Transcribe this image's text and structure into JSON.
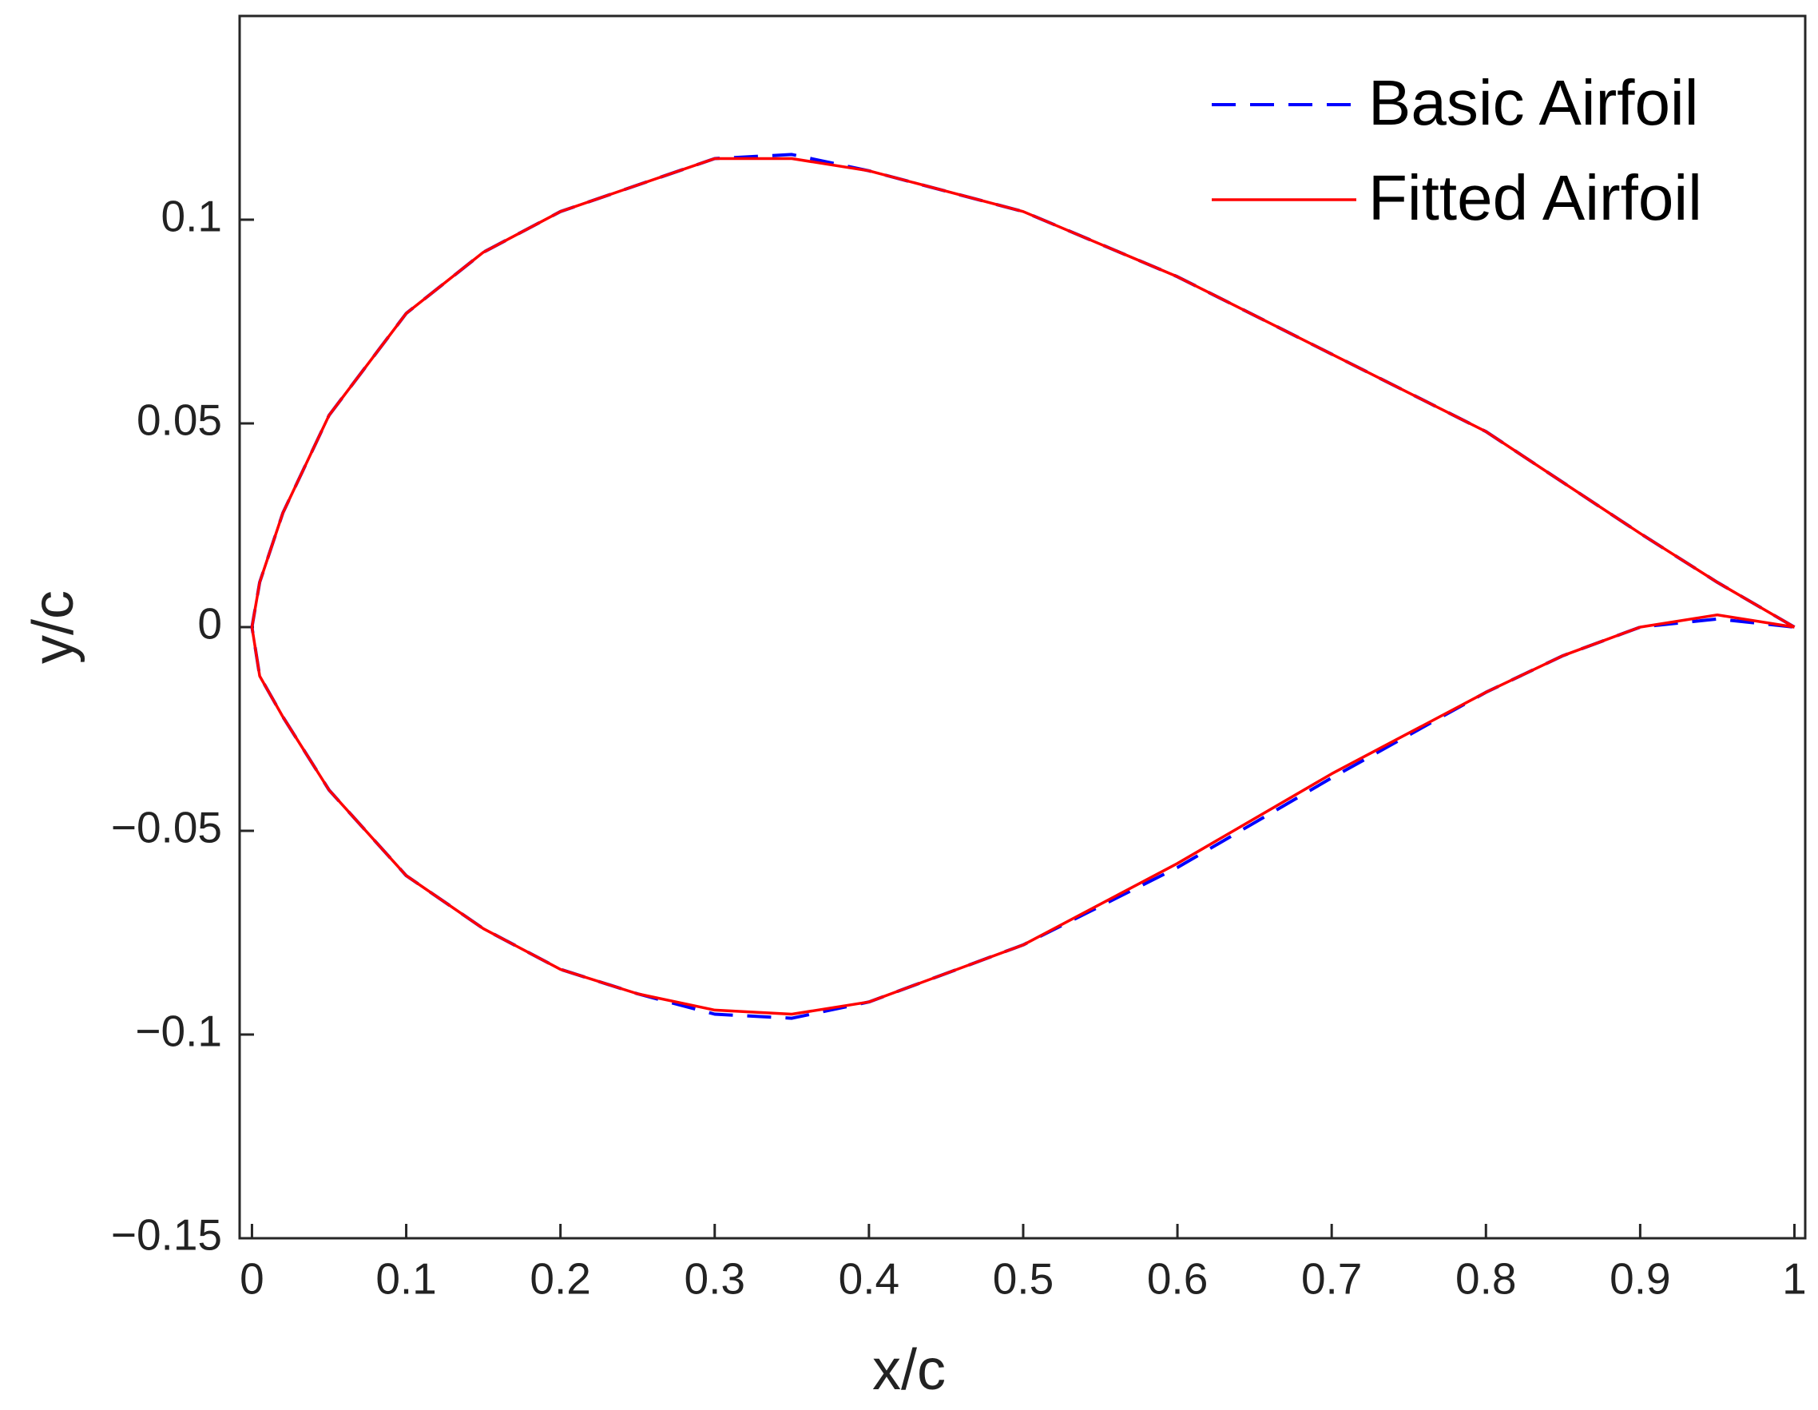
{
  "chart_data": {
    "type": "line",
    "x_label": "x/c",
    "y_label": "y/c",
    "x": [
      1,
      0.95,
      0.9,
      0.8,
      0.7,
      0.6,
      0.5,
      0.4,
      0.35,
      0.3,
      0.2,
      0.15,
      0.1,
      0.05,
      0.02,
      0.005,
      0,
      0.005,
      0.02,
      0.05,
      0.1,
      0.15,
      0.2,
      0.25,
      0.3,
      0.35,
      0.4,
      0.5,
      0.6,
      0.7,
      0.8,
      0.85,
      0.9,
      0.95,
      1
    ],
    "series": [
      {
        "name": "Basic Airfoil",
        "color": "#0000ff",
        "dashed": true,
        "values": [
          0,
          0.011,
          0.023,
          0.048,
          0.067,
          0.086,
          0.102,
          0.112,
          0.116,
          0.115,
          0.102,
          0.092,
          0.077,
          0.052,
          0.028,
          0.011,
          0,
          -0.012,
          -0.022,
          -0.04,
          -0.061,
          -0.074,
          -0.084,
          -0.09,
          -0.095,
          -0.096,
          -0.092,
          -0.078,
          -0.059,
          -0.037,
          -0.016,
          -0.007,
          0,
          0.002,
          0
        ]
      },
      {
        "name": "Fitted Airfoil",
        "color": "#ff0000",
        "dashed": false,
        "values": [
          0,
          0.011,
          0.023,
          0.048,
          0.067,
          0.086,
          0.102,
          0.112,
          0.115,
          0.115,
          0.102,
          0.092,
          0.077,
          0.052,
          0.028,
          0.011,
          0,
          -0.012,
          -0.022,
          -0.04,
          -0.061,
          -0.074,
          -0.084,
          -0.09,
          -0.094,
          -0.095,
          -0.092,
          -0.078,
          -0.058,
          -0.036,
          -0.016,
          -0.007,
          0,
          0.003,
          0
        ]
      }
    ],
    "xlim": [
      -0.008,
      1.007
    ],
    "ylim": [
      -0.15,
      0.15
    ],
    "xticks": [
      0,
      0.1,
      0.2,
      0.3,
      0.4,
      0.5,
      0.6,
      0.7,
      0.8,
      0.9,
      1
    ],
    "yticks": [
      {
        "value": -0.15,
        "label": "−0.15"
      },
      {
        "value": -0.1,
        "label": "−0.1"
      },
      {
        "value": -0.05,
        "label": "−0.05"
      },
      0,
      0.05,
      0.1
    ],
    "legend": "top-right",
    "grid": false
  }
}
